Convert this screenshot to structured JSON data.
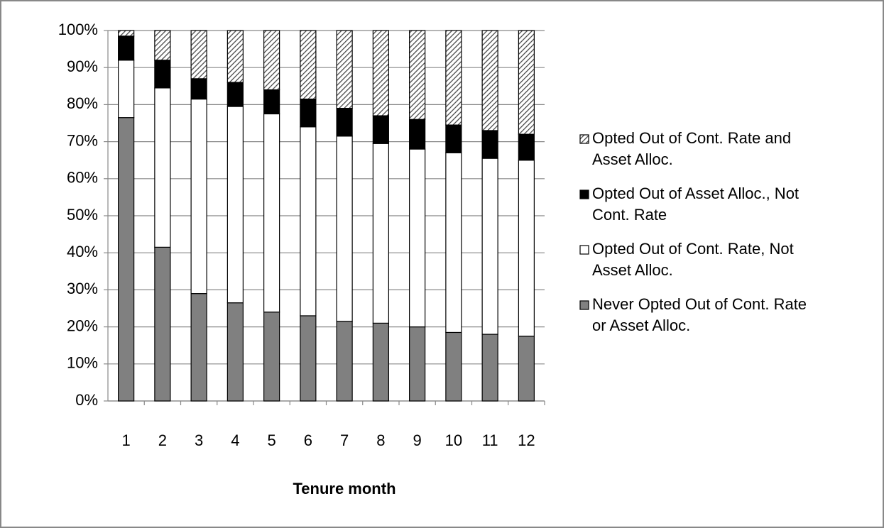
{
  "chart_data": {
    "type": "stacked_bar",
    "x_label": "Tenure month",
    "categories": [
      "1",
      "2",
      "3",
      "4",
      "5",
      "6",
      "7",
      "8",
      "9",
      "10",
      "11",
      "12"
    ],
    "series": [
      {
        "name": "Never Opted Out of Cont. Rate or Asset Alloc.",
        "color": "#808080",
        "values": [
          76.5,
          41.5,
          29,
          26.5,
          24,
          23,
          21.5,
          21,
          20,
          18.5,
          18,
          17.5
        ]
      },
      {
        "name": "Opted Out of Cont. Rate, Not Asset Alloc.",
        "color": "#ffffff",
        "values": [
          15.5,
          43,
          52.5,
          53,
          53.5,
          51,
          50,
          48.5,
          48,
          48.5,
          47.5,
          47.5
        ]
      },
      {
        "name": "Opted Out of Asset Alloc., Not Cont. Rate",
        "color": "#000000",
        "values": [
          6.5,
          7.5,
          5.5,
          6.5,
          6.5,
          7.5,
          7.5,
          7.5,
          8,
          7.5,
          7.5,
          7
        ]
      },
      {
        "name": "Opted Out of Cont. Rate and Asset Alloc.",
        "color": "#ffffff",
        "pattern": "hatch",
        "values": [
          1.5,
          8,
          13,
          14,
          16,
          18.5,
          21,
          23,
          24,
          25.5,
          27,
          28
        ]
      }
    ],
    "ylim": [
      0,
      100
    ],
    "yticks": [
      {
        "value": 0,
        "label": "0%"
      },
      {
        "value": 10,
        "label": "10%"
      },
      {
        "value": 20,
        "label": "20%"
      },
      {
        "value": 30,
        "label": "30%"
      },
      {
        "value": 40,
        "label": "40%"
      },
      {
        "value": 50,
        "label": "50%"
      },
      {
        "value": 60,
        "label": "60%"
      },
      {
        "value": 70,
        "label": "70%"
      },
      {
        "value": 80,
        "label": "80%"
      },
      {
        "value": 90,
        "label": "90%"
      },
      {
        "value": 100,
        "label": "100%"
      }
    ],
    "grid": true,
    "legend": "right"
  }
}
